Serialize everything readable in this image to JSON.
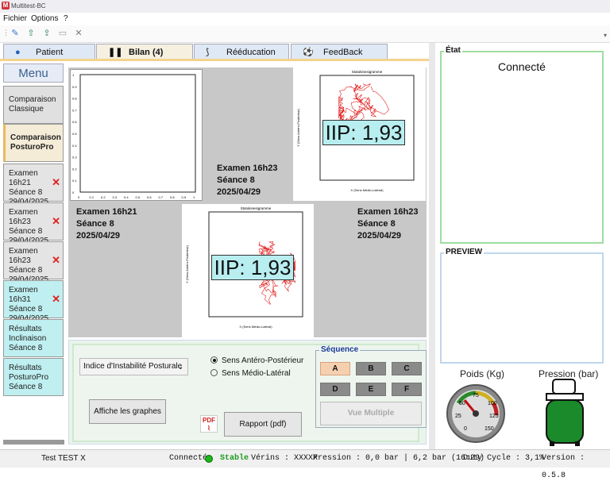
{
  "window": {
    "title": "Multitest-BC"
  },
  "menubar": {
    "items": [
      "Fichier",
      "Options",
      "?"
    ]
  },
  "tabs": [
    {
      "label": "Patient",
      "icon": "person-icon"
    },
    {
      "label": "Bilan (4)",
      "icon": "footprints-icon"
    },
    {
      "label": "Rééducation",
      "icon": "foot-icon"
    },
    {
      "label": "FeedBack",
      "icon": "ball-icon"
    }
  ],
  "sidebar": {
    "header": "Menu",
    "items": [
      {
        "label": "Comparaison Classique",
        "line1": "Comparaison",
        "line2": "Classique"
      },
      {
        "label": "Comparaison PosturoPro",
        "line1": "Comparaison",
        "line2": "PosturoPro"
      },
      {
        "line1": "Examen 16h21",
        "line2": "Séance 8",
        "line3": "29/04/2025",
        "removable": true
      },
      {
        "line1": "Examen 16h23",
        "line2": "Séance 8",
        "line3": "29/04/2025",
        "removable": true
      },
      {
        "line1": "Examen 16h23",
        "line2": "Séance 8",
        "line3": "29/04/2025",
        "removable": true
      },
      {
        "line1": "Examen 16h31",
        "line2": "Séance 8",
        "line3": "29/04/2025",
        "removable": true
      },
      {
        "line1": "Résultats",
        "line2": "Inclinaison",
        "line3": "Séance 8"
      },
      {
        "line1": "Résultats",
        "line2": "PosturoPro",
        "line3": "Séance 8"
      }
    ]
  },
  "comparison": {
    "exam_top": {
      "line1": "Examen 16h23",
      "line2": "Séance 8",
      "line3": "2025/04/29"
    },
    "exam_left": {
      "line1": "Examen 16h21",
      "line2": "Séance 8",
      "line3": "2025/04/29"
    },
    "exam_right": {
      "line1": "Examen 16h23",
      "line2": "Séance 8",
      "line3": "2025/04/29"
    },
    "stato_title": "Statokinesigramme",
    "stato_ylabel": "Y (Sens Antéro-Postérieur)",
    "stato_xlabel": "X (Sens Médio-Latéral)",
    "iip_label": "IIP: 1,93",
    "iip_label_2": "IIP: 1,93",
    "empty_axis_x": [
      "0",
      "0.1",
      "0.2",
      "0.3",
      "0.4",
      "0.5",
      "0.6",
      "0.7",
      "0.8",
      "0.9",
      "1"
    ],
    "empty_axis_y": [
      "0",
      "0.1",
      "0.2",
      "0.3",
      "0.4",
      "0.5",
      "0.6",
      "0.7",
      "0.8",
      "0.9",
      "1"
    ]
  },
  "controls": {
    "select_value": "Indice d'Instabilité Posturale",
    "radio_ap": "Sens Antéro-Postérieur",
    "radio_ml": "Sens Médio-Latéral",
    "show_graphs": "Affiche les graphes",
    "report": "Rapport (pdf)",
    "sequence_label": "Séquence",
    "sequence_buttons": [
      "A",
      "B",
      "C",
      "D",
      "E",
      "F"
    ],
    "multi_view": "Vue Multiple"
  },
  "etat": {
    "label": "État",
    "value": "Connecté"
  },
  "preview": {
    "label": "PREVIEW"
  },
  "gauges": {
    "weight_label": "Poids (Kg)",
    "pressure_label": "Pression (bar)",
    "weight_ticks": [
      "25",
      "50",
      "75",
      "100",
      "125",
      "150",
      "0"
    ]
  },
  "status": {
    "patient": "Test TEST X",
    "connected": "Connecté",
    "stable": "Stable",
    "verins": "Vérins : XXXXX",
    "pression": "Pression : 0,0 bar | 6,2 bar (16:29)",
    "duty": "Duty Cycle :  3,1%",
    "version": "Version : 0.5.8"
  }
}
